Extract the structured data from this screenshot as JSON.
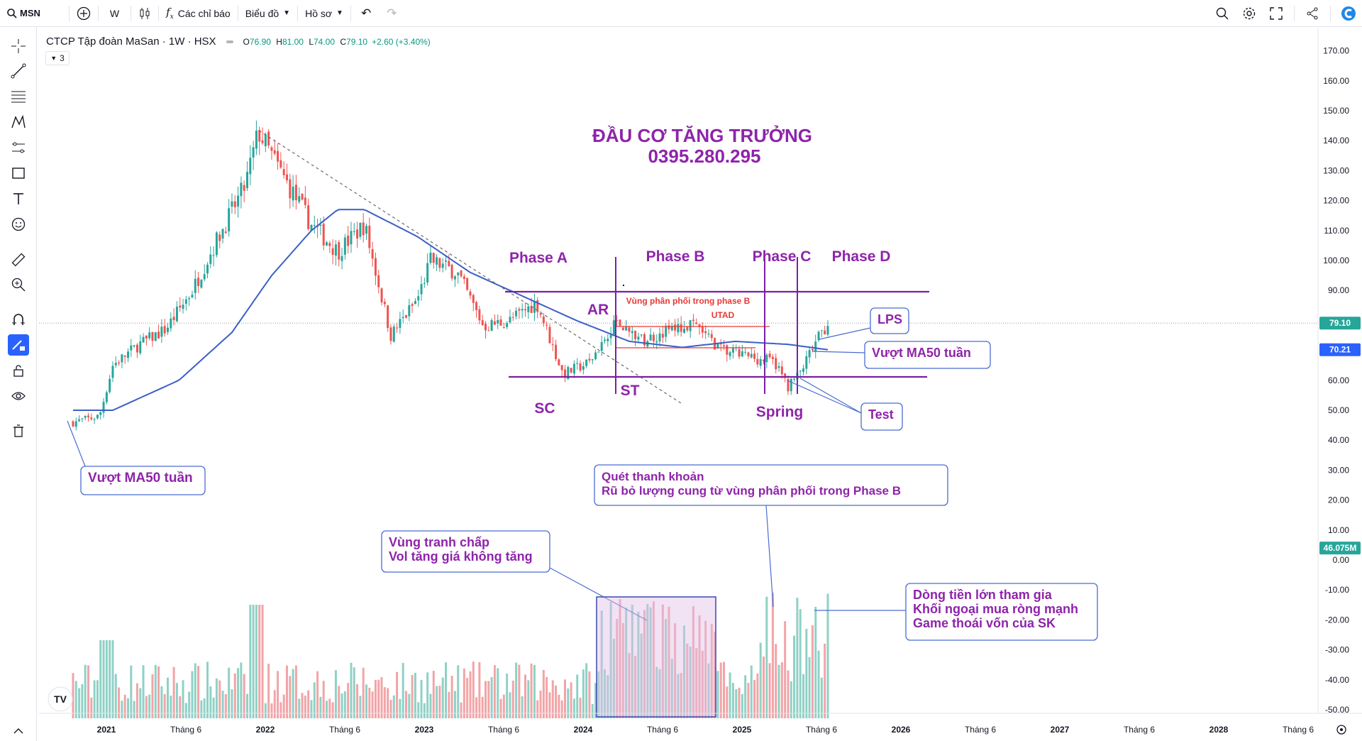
{
  "topbar": {
    "symbol": "MSN",
    "interval": "W",
    "indicators_label": "Các chỉ báo",
    "chart_label": "Biểu đồ",
    "profile_label": "Hồ sơ"
  },
  "legend": {
    "title": "CTCP Tập đoàn MaSan · 1W · HSX",
    "o_label": "O",
    "o_value": "76.90",
    "h_label": "H",
    "h_value": "81.00",
    "l_label": "L",
    "l_value": "74.00",
    "c_label": "C",
    "c_value": "79.10",
    "change": "+2.60 (+3.40%)",
    "collapse_count": "3"
  },
  "colors": {
    "up": "#26a69a",
    "down": "#ef5350",
    "up_vol": "#8fd1c6",
    "down_vol": "#f2a4a7",
    "ma": "#3b5fc9",
    "annotation": "#8e24aa",
    "line": "#7b1fa2",
    "box_border": "#4a6cd1",
    "vol_box_fill": "#e1bee7"
  },
  "annotations": {
    "headline_1": "ĐẦU CƠ TĂNG TRƯỞNG",
    "headline_2": "0395.280.295",
    "phase_a": "Phase A",
    "phase_b": "Phase B",
    "phase_c": "Phase C",
    "phase_d": "Phase D",
    "ar": "AR",
    "sc": "SC",
    "st": "ST",
    "spring": "Spring",
    "utad": "UTAD",
    "phase_b_zone": "Vùng phân phối trong phase B",
    "dot": ".",
    "lps": "LPS",
    "ma50_right": "Vượt MA50 tuần",
    "test": "Test",
    "ma50_left": "Vượt MA50 tuần",
    "liquidity_1": "Quét thanh khoản",
    "liquidity_2": "Rũ bỏ lượng cung từ vùng phân phối trong Phase B",
    "contest_1": "Vùng tranh chấp",
    "contest_2": "Vol tăng giá không tăng",
    "money_1": "Dòng tiền lớn tham gia",
    "money_2": "Khối ngoại mua ròng mạnh",
    "money_3": "Game thoái vốn của SK"
  },
  "chart_data": {
    "type": "candlestick",
    "symbol": "MSN",
    "timeframe": "1W",
    "y_axis_ticks": [
      "170.00",
      "160.00",
      "150.00",
      "140.00",
      "130.00",
      "120.00",
      "110.00",
      "100.00",
      "90.00",
      "80.00",
      "70.00",
      "60.00",
      "50.00",
      "40.00",
      "30.00",
      "20.00",
      "10.00",
      "0.00",
      "-10.00",
      "-20.00",
      "-30.00",
      "-40.00",
      "-50.00"
    ],
    "ylim": [
      -55,
      175
    ],
    "x_axis_labels": [
      "2021",
      "Tháng 6",
      "2022",
      "Tháng 6",
      "2023",
      "Tháng 6",
      "2024",
      "Tháng 6",
      "2025",
      "Tháng 6",
      "2026",
      "Tháng 6",
      "2027",
      "Tháng 6",
      "2028",
      "Tháng 6"
    ],
    "price_badge": "79.10",
    "ma_badge": "70.21",
    "volume_badge": "46.075M",
    "price_keypoints": [
      {
        "t": "2020-10",
        "close": 46
      },
      {
        "t": "2020-12",
        "close": 48
      },
      {
        "t": "2021-01",
        "close": 65
      },
      {
        "t": "2021-03",
        "close": 72
      },
      {
        "t": "2021-05",
        "close": 77
      },
      {
        "t": "2021-07",
        "close": 90
      },
      {
        "t": "2021-09",
        "close": 108
      },
      {
        "t": "2021-11",
        "close": 125
      },
      {
        "t": "2021-12",
        "close": 143
      },
      {
        "t": "2022-02",
        "close": 127
      },
      {
        "t": "2022-04",
        "close": 112
      },
      {
        "t": "2022-06",
        "close": 103
      },
      {
        "t": "2022-08",
        "close": 112
      },
      {
        "t": "2022-10",
        "close": 75
      },
      {
        "t": "2022-12",
        "close": 87
      },
      {
        "t": "2023-01",
        "close": 100
      },
      {
        "t": "2023-03",
        "close": 96
      },
      {
        "t": "2023-05",
        "close": 78
      },
      {
        "t": "2023-07",
        "close": 80
      },
      {
        "t": "2023-09",
        "close": 86
      },
      {
        "t": "2023-11",
        "close": 62
      },
      {
        "t": "2024-01",
        "close": 66
      },
      {
        "t": "2024-03",
        "close": 80
      },
      {
        "t": "2024-05",
        "close": 73
      },
      {
        "t": "2024-07",
        "close": 77
      },
      {
        "t": "2024-09",
        "close": 78
      },
      {
        "t": "2024-11",
        "close": 70
      },
      {
        "t": "2025-01",
        "close": 68
      },
      {
        "t": "2025-03",
        "close": 66
      },
      {
        "t": "2025-04",
        "close": 58
      },
      {
        "t": "2025-05",
        "close": 63
      },
      {
        "t": "2025-06",
        "close": 72
      },
      {
        "t": "2025-07",
        "close": 79.1
      }
    ],
    "ma50_keypoints": [
      {
        "t": "2020-10",
        "value": 50
      },
      {
        "t": "2021-01",
        "value": 50
      },
      {
        "t": "2021-06",
        "value": 60
      },
      {
        "t": "2021-10",
        "value": 76
      },
      {
        "t": "2022-01",
        "value": 95
      },
      {
        "t": "2022-04",
        "value": 110
      },
      {
        "t": "2022-06",
        "value": 117
      },
      {
        "t": "2022-08",
        "value": 117
      },
      {
        "t": "2022-12",
        "value": 108
      },
      {
        "t": "2023-04",
        "value": 96
      },
      {
        "t": "2023-08",
        "value": 88
      },
      {
        "t": "2023-12",
        "value": 80
      },
      {
        "t": "2024-04",
        "value": 73
      },
      {
        "t": "2024-08",
        "value": 71
      },
      {
        "t": "2024-12",
        "value": 73
      },
      {
        "t": "2025-04",
        "value": 72
      },
      {
        "t": "2025-07",
        "value": 70.21
      }
    ],
    "levels": {
      "phase_b_top": 90,
      "phase_b_bottom": 61,
      "utad_zone_top": 80,
      "utad_zone_bottom": 72
    }
  }
}
